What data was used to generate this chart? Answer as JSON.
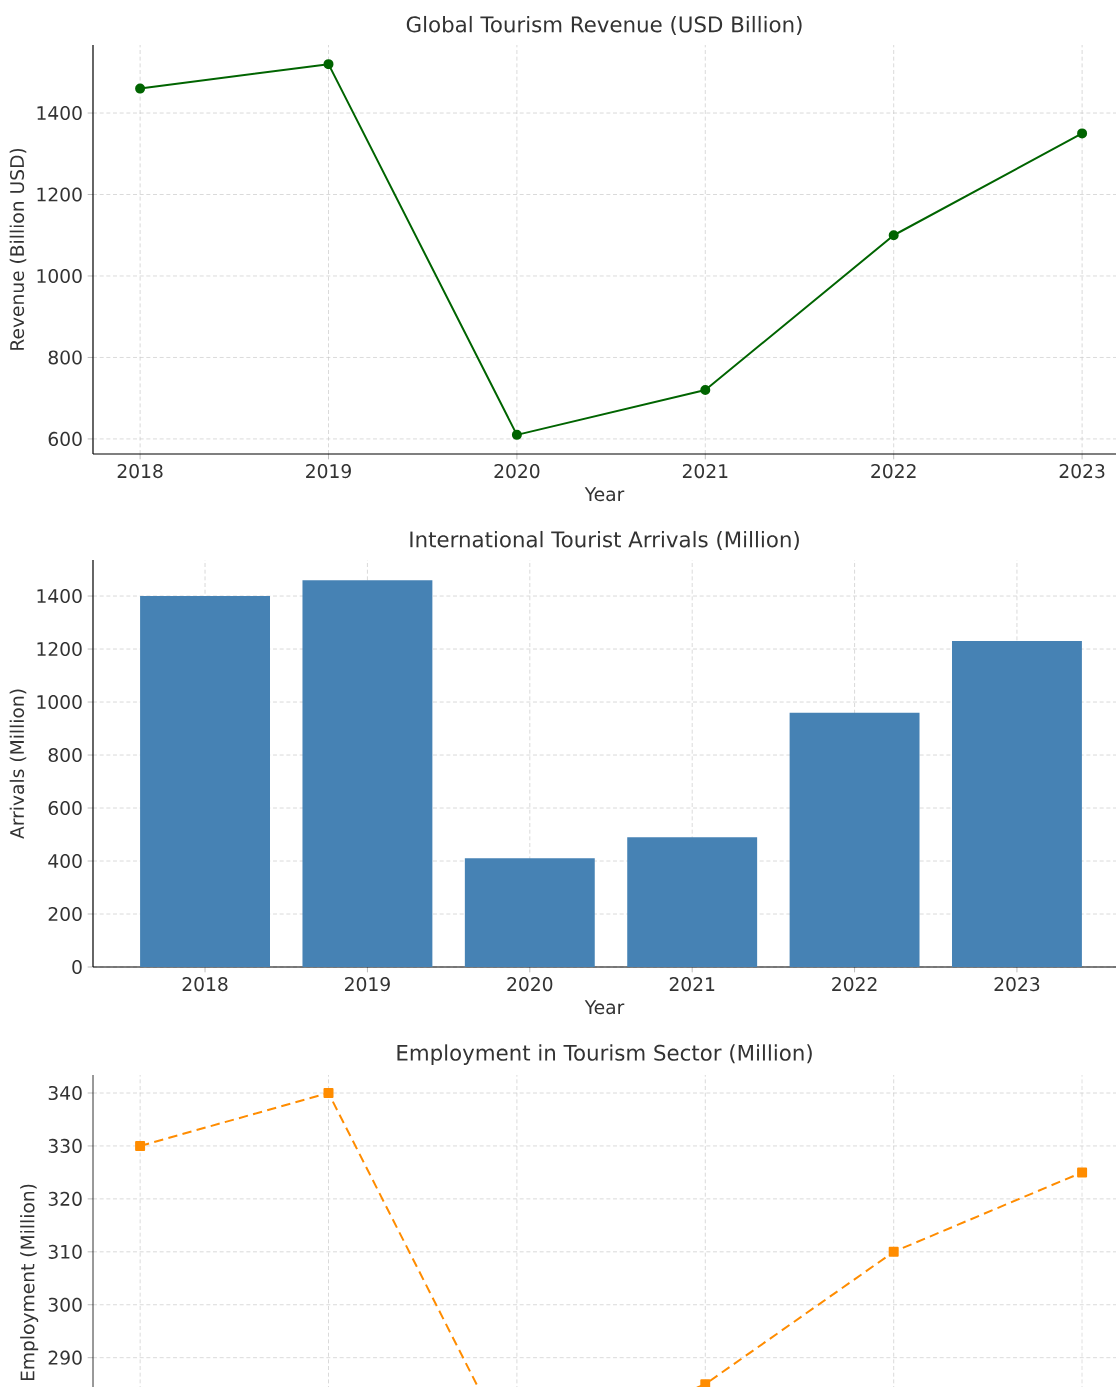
{
  "chart_data": [
    {
      "type": "line",
      "title": "Global Tourism Revenue (USD Billion)",
      "xlabel": "Year",
      "ylabel": "Revenue (Billion USD)",
      "x": [
        2018,
        2019,
        2020,
        2021,
        2022,
        2023
      ],
      "values": [
        1460,
        1520,
        610,
        720,
        1100,
        1350
      ],
      "color": "#006400",
      "xlim": [
        2017.75,
        2023.18
      ],
      "xticks": [
        2018,
        2019,
        2020,
        2021,
        2022,
        2023
      ],
      "ylim": [
        563,
        1567
      ],
      "yticks": [
        600,
        800,
        1000,
        1200,
        1400
      ],
      "grid": true,
      "marker": "circle",
      "line_style": "solid"
    },
    {
      "type": "bar",
      "title": "International Tourist Arrivals (Million)",
      "xlabel": "Year",
      "ylabel": "Arrivals (Million)",
      "categories": [
        "2018",
        "2019",
        "2020",
        "2021",
        "2022",
        "2023"
      ],
      "values": [
        1400,
        1460,
        410,
        490,
        960,
        1230
      ],
      "color": "#4682b4",
      "ylim": [
        0,
        1536
      ],
      "yticks": [
        0,
        200,
        400,
        600,
        800,
        1000,
        1200,
        1400
      ],
      "grid": true
    },
    {
      "type": "line",
      "title": "Employment in Tourism Sector (Million)",
      "ylabel": "Employment (Million)",
      "x": [
        2018,
        2019,
        2020,
        2021,
        2022,
        2023
      ],
      "values": [
        330,
        340,
        270,
        285,
        310,
        325
      ],
      "color": "#ff8c00",
      "xlim": [
        2017.75,
        2023.18
      ],
      "xticks": [
        2018,
        2019,
        2020,
        2021,
        2022,
        2023
      ],
      "ylim": [
        265,
        343.4
      ],
      "yticks": [
        290,
        300,
        310,
        320,
        330,
        340
      ],
      "grid": true,
      "marker": "square",
      "line_style": "dashed",
      "tick_labels": "y"
    }
  ]
}
